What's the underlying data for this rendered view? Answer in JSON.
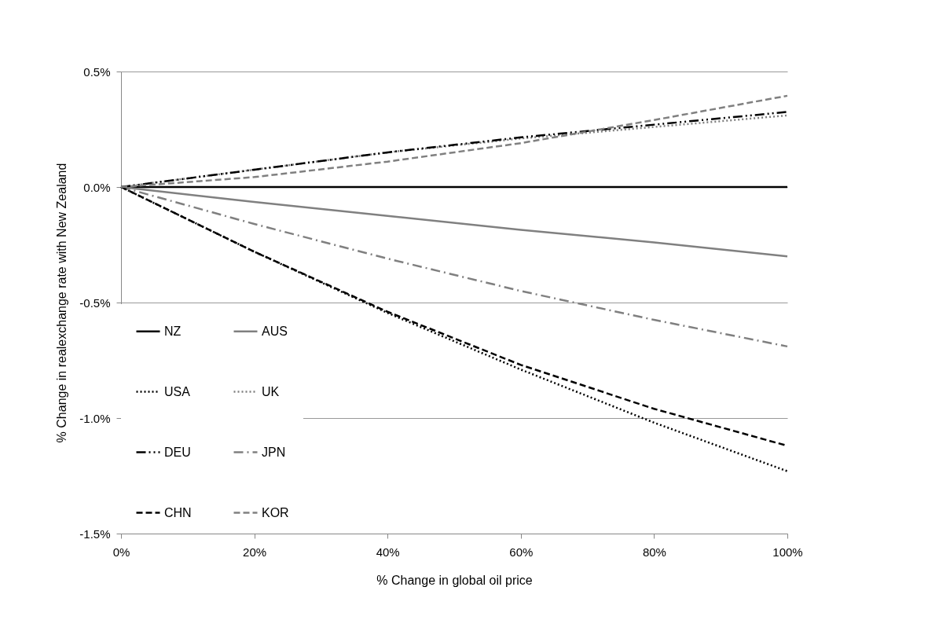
{
  "chart_data": {
    "type": "line",
    "xlabel": "% Change in global oil price",
    "ylabel": "% Change in realexchange rate with New Zealand",
    "x": [
      0,
      20,
      40,
      60,
      80,
      100
    ],
    "xlim": [
      0,
      100
    ],
    "xticks": [
      {
        "value": 0,
        "label": "0%"
      },
      {
        "value": 20,
        "label": "20%"
      },
      {
        "value": 40,
        "label": "40%"
      },
      {
        "value": 60,
        "label": "60%"
      },
      {
        "value": 80,
        "label": "80%"
      },
      {
        "value": 100,
        "label": "100%"
      }
    ],
    "ylim": [
      -1.5,
      0.5
    ],
    "yticks": [
      {
        "value": -1.5,
        "label": "-1.5%"
      },
      {
        "value": -1,
        "label": "-1.0%"
      },
      {
        "value": -0.5,
        "label": "-0.5%"
      },
      {
        "value": 0,
        "label": "0.0%"
      },
      {
        "value": 0.5,
        "label": "0.5%"
      }
    ],
    "grid": "y",
    "legend": "bottom left",
    "marker": "none",
    "series": [
      {
        "name": "NZ",
        "color": "#000000",
        "line_style": "solid",
        "values": [
          0,
          0,
          0,
          0,
          0,
          0
        ]
      },
      {
        "name": "AUS",
        "color": "#808080",
        "line_style": "solid",
        "values": [
          0,
          -0.065,
          -0.125,
          -0.185,
          -0.24,
          -0.3
        ]
      },
      {
        "name": "USA",
        "color": "#000000",
        "line_style": "dotted",
        "values": [
          0,
          -0.28,
          -0.545,
          -0.79,
          -1.02,
          -1.23
        ]
      },
      {
        "name": "UK",
        "color": "#808080",
        "line_style": "dotted",
        "values": [
          0,
          0.075,
          0.15,
          0.21,
          0.26,
          0.31
        ]
      },
      {
        "name": "DEU",
        "color": "#000000",
        "line_style": "dashdotdot",
        "values": [
          0,
          0.075,
          0.15,
          0.215,
          0.27,
          0.325
        ]
      },
      {
        "name": "JPN",
        "color": "#808080",
        "line_style": "dashdot",
        "values": [
          0,
          -0.16,
          -0.31,
          -0.45,
          -0.575,
          -0.69
        ]
      },
      {
        "name": "CHN",
        "color": "#000000",
        "line_style": "dashed",
        "values": [
          0,
          -0.28,
          -0.54,
          -0.77,
          -0.96,
          -1.12
        ]
      },
      {
        "name": "KOR",
        "color": "#808080",
        "line_style": "dashed",
        "values": [
          0,
          0.043,
          0.11,
          0.19,
          0.29,
          0.395
        ]
      }
    ]
  }
}
